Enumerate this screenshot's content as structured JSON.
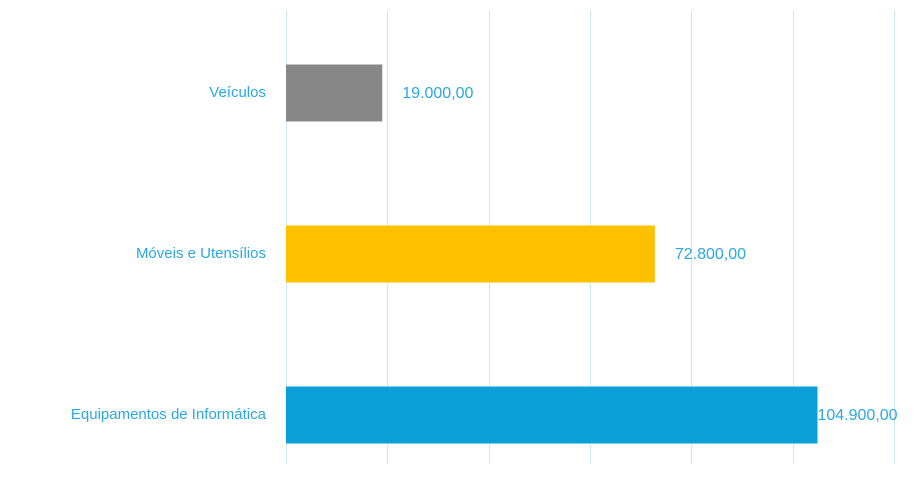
{
  "chart_data": {
    "type": "bar",
    "orientation": "horizontal",
    "categories": [
      "Veículos",
      "Móveis e Utensílios",
      "Equipamentos de Informática"
    ],
    "values": [
      19000,
      72800,
      104900
    ],
    "data_labels": [
      "19.000,00",
      "72.800,00",
      "104.900,00"
    ],
    "bar_colors": [
      "#878787",
      "#ffc000",
      "#0aa0d7"
    ],
    "label_color": "#2aa8e0",
    "gridline_color": "#cfe6f4",
    "xlim": [
      0,
      120000
    ],
    "x_tick_step": 20000,
    "grid": true,
    "legend": "none",
    "title": "",
    "xlabel": "",
    "ylabel": ""
  }
}
